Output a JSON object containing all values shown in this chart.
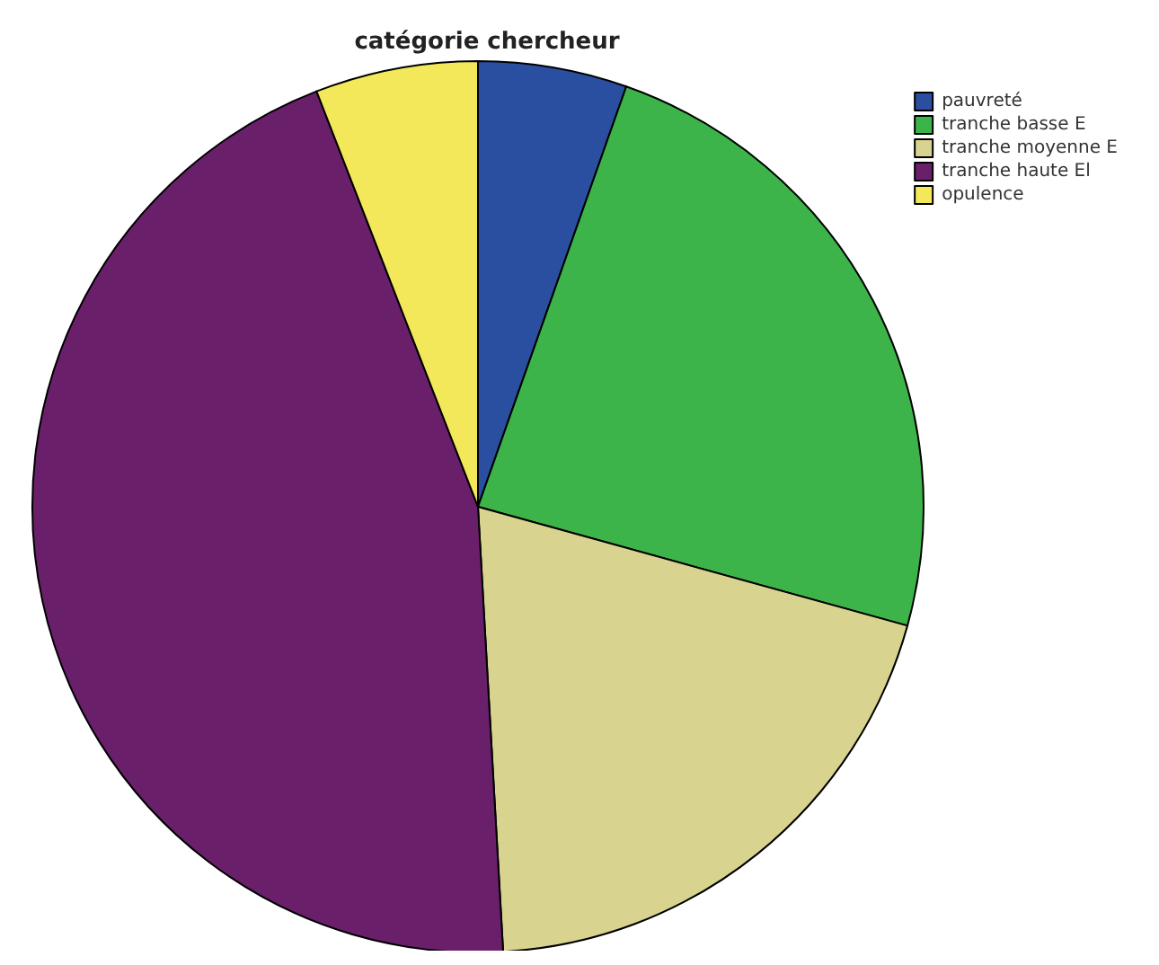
{
  "chart_data": {
    "type": "pie",
    "title": "catégorie chercheur",
    "categories": [
      "pauvreté",
      "tranche basse E",
      "tranche moyenne E",
      "tranche haute El",
      "opulence"
    ],
    "values": [
      5.4,
      23.9,
      19.8,
      45.0,
      5.9
    ],
    "colors": [
      "#2a4ea0",
      "#3cb44a",
      "#d8d490",
      "#6a1f6a",
      "#f2e85a"
    ],
    "legend": "top right"
  }
}
